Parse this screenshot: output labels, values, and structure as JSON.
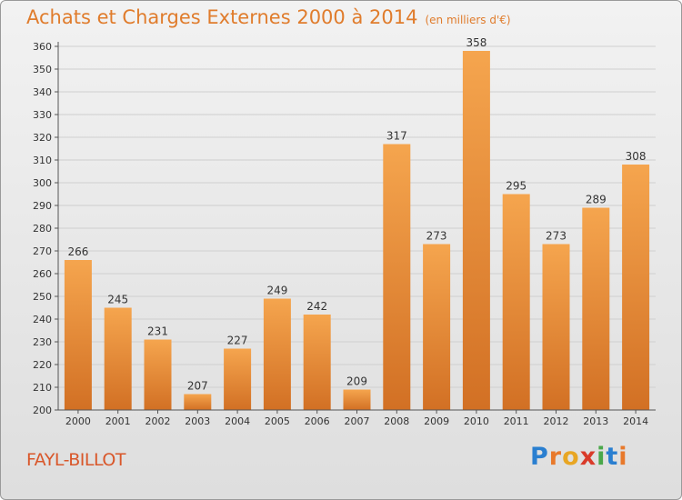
{
  "title": "Achats et Charges Externes 2000 à 2014",
  "subtitle": "(en milliers d'€)",
  "place_name": "FAYL-BILLOT",
  "logo": {
    "letters": [
      "P",
      "r",
      "o",
      "x",
      "i",
      "t",
      "i"
    ],
    "colors": [
      "#2a7fd0",
      "#e8792b",
      "#e8a623",
      "#d93b2a",
      "#4aa84a",
      "#2a7fd0",
      "#e8792b"
    ]
  },
  "colors": {
    "bar_top": "#f5a54e",
    "bar_bottom": "#d27024",
    "title": "#e07c2c",
    "place": "#d9572a"
  },
  "chart_data": {
    "type": "bar",
    "categories": [
      "2000",
      "2001",
      "2002",
      "2003",
      "2004",
      "2005",
      "2006",
      "2007",
      "2008",
      "2009",
      "2010",
      "2011",
      "2012",
      "2013",
      "2014"
    ],
    "values": [
      266,
      245,
      231,
      207,
      227,
      249,
      242,
      209,
      317,
      273,
      358,
      295,
      273,
      289,
      308
    ],
    "title": "Achats et Charges Externes 2000 à 2014",
    "xlabel": "",
    "ylabel": "",
    "ylim": [
      200,
      360
    ],
    "yticks": [
      200,
      210,
      220,
      230,
      240,
      250,
      260,
      270,
      280,
      290,
      300,
      310,
      320,
      330,
      340,
      350,
      360
    ],
    "grid": true,
    "data_labels": true
  }
}
